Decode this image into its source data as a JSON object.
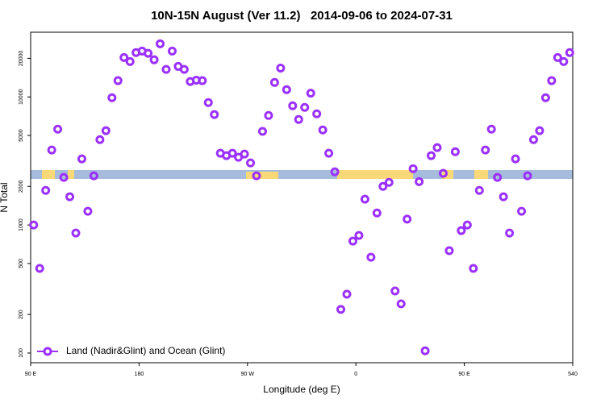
{
  "chart_data": {
    "type": "scatter",
    "title": "10N-15N August (Ver 11.2)   2014-09-06 to 2024-07-31",
    "x_label": "Longitude (deg E)",
    "y_label": "N Total",
    "log_y": true,
    "grid": false,
    "legend": "bottomleft",
    "xlim": [
      90,
      540
    ],
    "xticks": [
      {
        "value": 90,
        "label": "90 E"
      },
      180,
      {
        "value": 270,
        "label": "90 W"
      },
      {
        "value": 360,
        "label": "0"
      },
      {
        "value": 450,
        "label": "90 E"
      },
      540
    ],
    "ylim": [
      84,
      32000
    ],
    "yticks": [
      100,
      200,
      500,
      1000,
      2000,
      5000,
      10000,
      20000
    ],
    "series": [
      {
        "name": "Land (Nadir&Glint) and Ocean (Glint)",
        "color": "#9b30ff",
        "x": [
          92.5,
          97.5,
          102.5,
          107.5,
          112.5,
          117.5,
          122.5,
          127.5,
          132.5,
          137.5,
          142.5,
          147.5,
          152.5,
          157.5,
          162.5,
          167.5,
          172.5,
          177.5,
          182.5,
          187.5,
          192.5,
          197.5,
          202.5,
          207.5,
          212.5,
          217.5,
          222.5,
          227.5,
          232.5,
          237.5,
          242.5,
          247.5,
          252.5,
          257.5,
          262.5,
          267.5,
          272.5,
          277.5,
          282.5,
          287.5,
          292.5,
          297.5,
          302.5,
          307.5,
          312.5,
          317.5,
          322.5,
          327.5,
          332.5,
          337.5,
          342.5,
          347.5,
          352.5,
          357.5,
          362.5,
          367.5,
          372.5,
          377.5,
          382.5,
          387.5,
          392.5,
          397.5,
          402.5,
          407.5,
          412.5,
          417.5,
          422.5,
          427.5,
          432.5,
          437.5,
          442.5,
          447.5,
          452.5,
          457.5,
          462.5,
          467.5,
          472.5,
          477.5,
          482.5,
          487.5,
          492.5,
          497.5,
          502.5,
          507.5,
          512.5,
          517.5,
          522.5,
          527.5,
          532.5,
          537.5
        ],
        "values": [
          1000,
          458,
          1860,
          3850,
          5600,
          2350,
          1660,
          865,
          3280,
          1280,
          2420,
          4640,
          5450,
          9860,
          13400,
          20300,
          18900,
          22200,
          22800,
          21900,
          19500,
          26000,
          16400,
          22800,
          17300,
          16400,
          13200,
          13500,
          13400,
          9040,
          7280,
          3630,
          3480,
          3630,
          3380,
          3580,
          3050,
          2420,
          5380,
          7160,
          12970,
          16800,
          11400,
          8530,
          6670,
          8280,
          10700,
          7380,
          5520,
          3630,
          2600,
          219,
          288,
          748,
          828,
          1590,
          560,
          1240,
          2000,
          2150,
          305,
          242,
          1110,
          2750,
          2180,
          104,
          3480,
          4020,
          2530,
          630,
          3730,
          904,
          1000,
          458,
          1860,
          3850,
          5600,
          2350,
          1660,
          865,
          3280,
          1280,
          2420,
          4640,
          5450,
          9860,
          13400,
          20300,
          18900,
          22200
        ]
      }
    ]
  }
}
